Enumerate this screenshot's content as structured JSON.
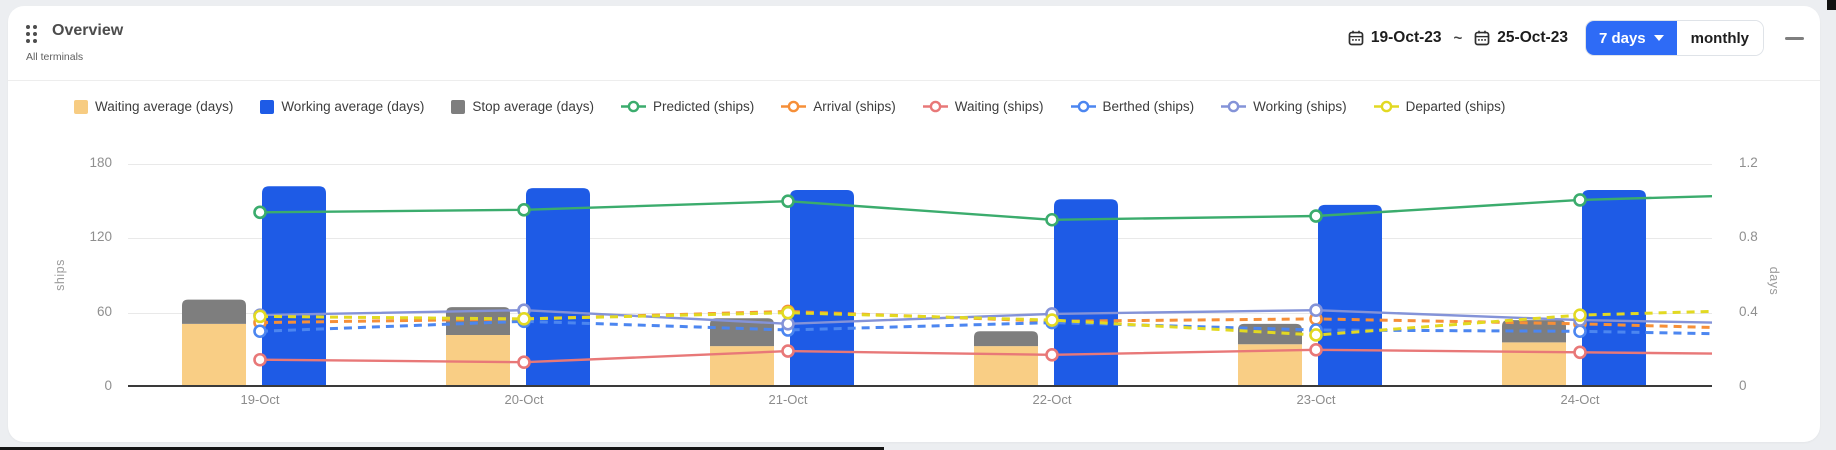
{
  "header": {
    "title": "Overview",
    "subtitle": "All terminals",
    "date_from": "19-Oct-23",
    "separator": "~",
    "date_to": "25-Oct-23",
    "range_label": "7 days",
    "monthly_label": "monthly"
  },
  "legend": [
    {
      "label": "Waiting average (days)",
      "type": "square",
      "color": "#F7CC82"
    },
    {
      "label": "Working average (days)",
      "type": "square",
      "color": "#1E5BE6"
    },
    {
      "label": "Stop average (days)",
      "type": "square",
      "color": "#7E7E7E"
    },
    {
      "label": "Predicted (ships)",
      "type": "line",
      "color": "#3BAC6D"
    },
    {
      "label": "Arrival (ships)",
      "type": "line",
      "color": "#F68F38"
    },
    {
      "label": "Waiting (ships)",
      "type": "line",
      "color": "#E87878"
    },
    {
      "label": "Berthed (ships)",
      "type": "line",
      "color": "#4C86F0"
    },
    {
      "label": "Working (ships)",
      "type": "line",
      "color": "#8493D8"
    },
    {
      "label": "Departed (ships)",
      "type": "line",
      "color": "#E2D922"
    }
  ],
  "chart_data": {
    "type": "combo-bar-line",
    "categories": [
      "19-Oct",
      "20-Oct",
      "21-Oct",
      "22-Oct",
      "23-Oct",
      "24-Oct"
    ],
    "left_axis": {
      "label": "ships",
      "ticks": [
        0,
        60,
        120,
        180
      ],
      "max": 180
    },
    "right_axis": {
      "label": "days",
      "ticks": [
        0,
        0.4,
        0.8,
        1.2
      ],
      "max": 1.2
    },
    "grid": "horizontal-only",
    "legend_position": "top",
    "bar_series": [
      {
        "name": "Waiting average (days)",
        "axis": "right",
        "stack": "avg",
        "color": "#F9CE85",
        "values": [
          0.34,
          0.28,
          0.22,
          0.22,
          0.23,
          0.24
        ]
      },
      {
        "name": "Stop average (days)",
        "axis": "right",
        "stack": "avg",
        "color": "#7E7E7E",
        "values": [
          0.13,
          0.15,
          0.15,
          0.08,
          0.11,
          0.12
        ]
      },
      {
        "name": "Working average (days)",
        "axis": "right",
        "color": "#1E5BE6",
        "values": [
          1.08,
          1.07,
          1.06,
          1.01,
          0.98,
          1.06
        ]
      }
    ],
    "line_series": [
      {
        "name": "Predicted (ships)",
        "axis": "left",
        "color": "#3BAC6D",
        "dashed": false,
        "values": [
          141,
          143,
          150,
          135,
          138,
          151
        ],
        "edge_value": 154
      },
      {
        "name": "Arrival (ships)",
        "axis": "left",
        "color": "#F68F38",
        "dashed": true,
        "values": [
          52,
          55,
          61,
          53,
          55,
          51
        ],
        "edge_value": 48
      },
      {
        "name": "Waiting (ships)",
        "axis": "left",
        "color": "#E87878",
        "dashed": false,
        "values": [
          22,
          20,
          29,
          26,
          30,
          28
        ],
        "edge_value": 27
      },
      {
        "name": "Berthed (ships)",
        "axis": "left",
        "color": "#4C86F0",
        "dashed": true,
        "values": [
          45,
          53,
          46,
          52,
          46,
          45
        ],
        "edge_value": 43
      },
      {
        "name": "Working (ships)",
        "axis": "left",
        "color": "#8493D8",
        "dashed": false,
        "values": [
          58,
          62,
          51,
          59,
          62,
          54
        ],
        "edge_value": 52
      },
      {
        "name": "Departed (ships)",
        "axis": "left",
        "color": "#E2D922",
        "dashed": true,
        "values": [
          57,
          55,
          60,
          54,
          42,
          58
        ],
        "edge_value": 61
      }
    ]
  }
}
